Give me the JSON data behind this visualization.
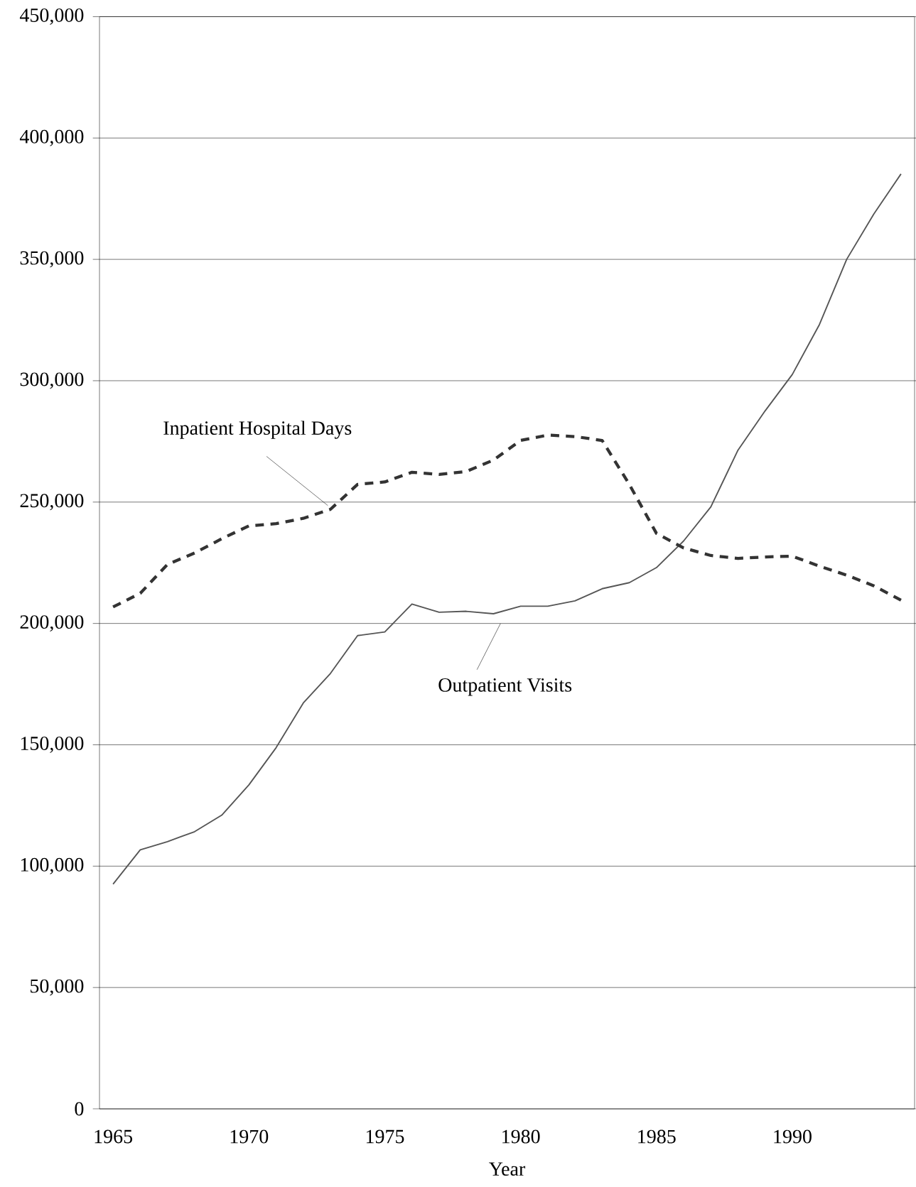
{
  "chart_data": {
    "type": "line",
    "xlabel": "Year",
    "categories": [
      "1965",
      null,
      null,
      null,
      null,
      "1970",
      null,
      null,
      null,
      null,
      "1975",
      null,
      null,
      null,
      null,
      "1980",
      null,
      null,
      null,
      null,
      "1985",
      null,
      null,
      null,
      null,
      "1990",
      null,
      null,
      null,
      null
    ],
    "series": [
      {
        "color": "#555555",
        "line_style": "solid",
        "values": [
          92600,
          106700,
          110100,
          114200,
          121000,
          133500,
          148800,
          167200,
          179400,
          195000,
          196500,
          208000,
          204600,
          205000,
          204000,
          207100,
          207100,
          209300,
          214300,
          216800,
          223000,
          234000,
          248000,
          271400,
          287600,
          302600,
          323200,
          350000,
          368700,
          385200
        ]
      },
      {
        "color": "#333333",
        "line_style": "dashed",
        "values": [
          206800,
          212400,
          224300,
          229000,
          234900,
          240200,
          241100,
          243300,
          247000,
          257300,
          258300,
          262300,
          261400,
          262600,
          267300,
          275400,
          277600,
          277000,
          275400,
          257300,
          237100,
          231100,
          228000,
          226800,
          227400,
          227700,
          223600,
          219900,
          215500,
          209600
        ]
      }
    ],
    "ylim": [
      0,
      450000
    ],
    "yticks": [
      {
        "value": 0,
        "label": "0"
      },
      {
        "value": 50000,
        "label": "50,000"
      },
      {
        "value": 100000,
        "label": "100,000"
      },
      {
        "value": 150000,
        "label": "150,000"
      },
      {
        "value": 200000,
        "label": "200,000"
      },
      {
        "value": 250000,
        "label": "250,000"
      },
      {
        "value": 300000,
        "label": "300,000"
      },
      {
        "value": 350000,
        "label": "350,000"
      },
      {
        "value": 400000,
        "label": "400,000"
      },
      {
        "value": 450000,
        "label": "450,000"
      }
    ],
    "grid": "y",
    "marker": "none",
    "annotations": [
      "Inpatient Hospital  Days",
      "Outpatient Visits"
    ]
  }
}
